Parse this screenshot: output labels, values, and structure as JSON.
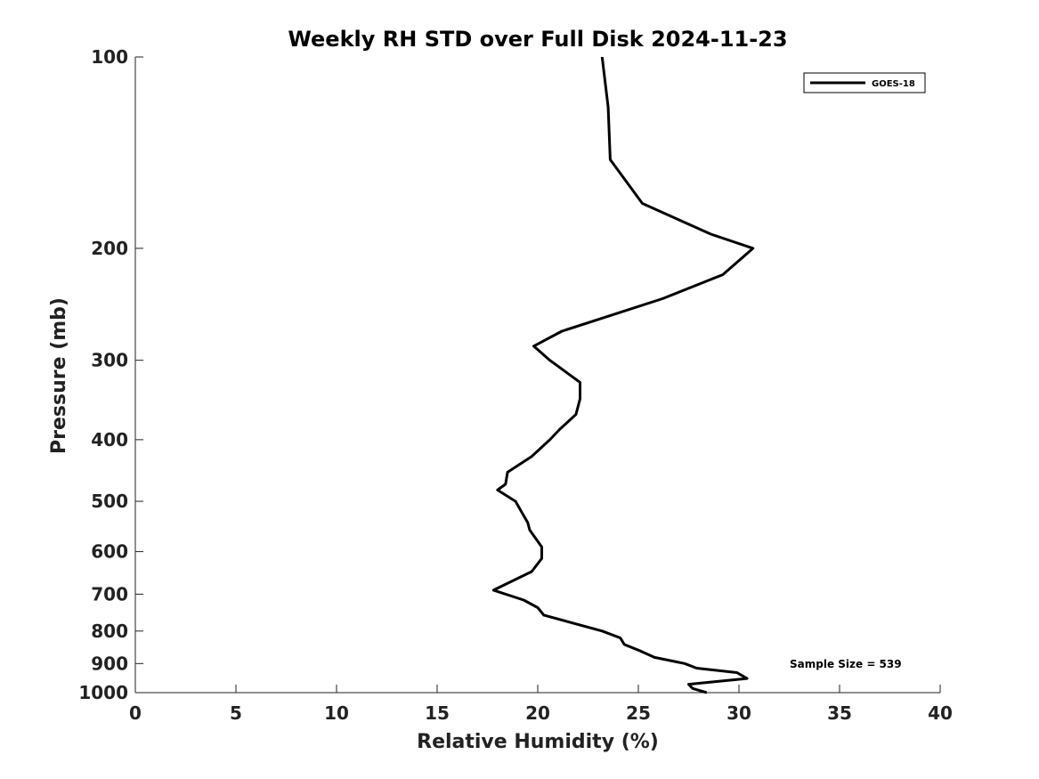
{
  "chart_data": {
    "type": "line",
    "title": "Weekly RH STD over Full Disk 2024-11-23",
    "xlabel": "Relative Humidity (%)",
    "ylabel": "Pressure (mb)",
    "xlim": [
      0,
      40
    ],
    "ylim": [
      1000,
      100
    ],
    "yscale": "log",
    "xticks": [
      0,
      5,
      10,
      15,
      20,
      25,
      30,
      35,
      40
    ],
    "xtick_labels": [
      "0",
      "5",
      "10",
      "15",
      "20",
      "25",
      "30",
      "35",
      "40"
    ],
    "yticks": [
      100,
      200,
      300,
      400,
      500,
      600,
      700,
      800,
      900,
      1000
    ],
    "ytick_labels": [
      "100",
      "200",
      "300",
      "400",
      "500",
      "600",
      "700",
      "800",
      "900",
      "1000"
    ],
    "legend": {
      "position": "top-right",
      "entries": [
        "GOES-18"
      ]
    },
    "annotation": "Sample Size = 539",
    "series": [
      {
        "name": "GOES-18",
        "color": "#000000",
        "x": [
          23.2,
          23.5,
          23.6,
          25.2,
          28.6,
          30.7,
          29.2,
          26.2,
          21.2,
          19.8,
          20.6,
          22.1,
          22.1,
          21.9,
          21.1,
          20.6,
          19.7,
          18.5,
          18.4,
          18.0,
          18.9,
          19.2,
          19.5,
          19.6,
          20.2,
          20.2,
          19.7,
          17.8,
          19.3,
          20.0,
          20.3,
          23.2,
          24.1,
          24.3,
          25.1,
          25.8,
          27.3,
          27.9,
          29.9,
          30.4,
          27.5,
          27.7,
          28.4
        ],
        "y": [
          100,
          120,
          145,
          170,
          190,
          200,
          220,
          240,
          270,
          285,
          300,
          325,
          345,
          365,
          385,
          400,
          425,
          450,
          470,
          480,
          500,
          520,
          540,
          555,
          590,
          615,
          645,
          690,
          715,
          735,
          755,
          800,
          820,
          840,
          860,
          880,
          900,
          915,
          930,
          950,
          970,
          985,
          1000
        ]
      }
    ]
  }
}
